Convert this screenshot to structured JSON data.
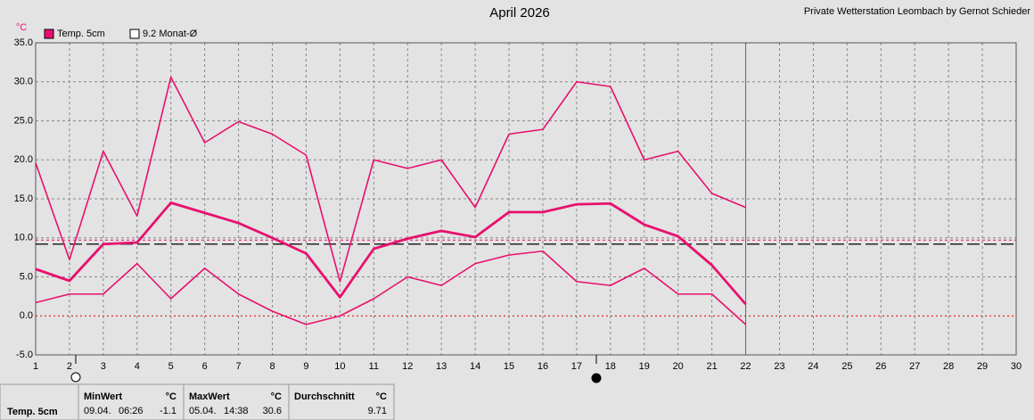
{
  "chart_data": {
    "type": "line",
    "title": "April 2026",
    "subtitle": "Private Wetterstation Leombach by Gernot Schieder",
    "y_unit": "°C",
    "x": [
      1,
      2,
      3,
      4,
      5,
      6,
      7,
      8,
      9,
      10,
      11,
      12,
      13,
      14,
      15,
      16,
      17,
      18,
      19,
      20,
      21,
      22
    ],
    "series": [
      {
        "name": "Temp. 5cm",
        "color": "#e8106e",
        "values": [
          6.0,
          4.5,
          9.2,
          9.4,
          14.5,
          13.2,
          11.9,
          10.0,
          8.0,
          2.4,
          8.6,
          9.9,
          10.9,
          10.1,
          13.3,
          13.3,
          14.3,
          14.4,
          11.7,
          10.2,
          6.5,
          1.5
        ],
        "max": [
          19.6,
          7.2,
          21.1,
          12.8,
          30.6,
          22.2,
          24.9,
          23.3,
          20.6,
          4.4,
          20.0,
          18.9,
          20.0,
          13.9,
          23.3,
          23.9,
          30.0,
          29.4,
          20.0,
          21.1,
          15.7,
          13.9
        ],
        "min": [
          1.7,
          2.8,
          2.8,
          6.7,
          2.2,
          6.1,
          2.8,
          0.6,
          -1.1,
          0.0,
          2.2,
          5.0,
          3.9,
          6.7,
          7.8,
          8.3,
          4.4,
          3.9,
          6.1,
          2.8,
          2.8,
          -1.1
        ]
      }
    ],
    "monthly_average": {
      "value": 9.2,
      "label": "9.2 Monat-Ø",
      "color": "#000000"
    },
    "xlim": [
      1,
      30
    ],
    "xticks": [
      1,
      2,
      3,
      4,
      5,
      6,
      7,
      8,
      9,
      10,
      11,
      12,
      13,
      14,
      15,
      16,
      17,
      18,
      19,
      20,
      21,
      22,
      23,
      24,
      25,
      26,
      27,
      28,
      29,
      30
    ],
    "ylim": [
      -5,
      35
    ],
    "yticks": [
      {
        "value": -5,
        "label": "-5.0"
      },
      {
        "value": 0,
        "label": "0.0"
      },
      {
        "value": 5,
        "label": "5.0"
      },
      {
        "value": 10,
        "label": "10.0"
      },
      {
        "value": 15,
        "label": "15.0"
      },
      {
        "value": 20,
        "label": "20.0"
      },
      {
        "value": 25,
        "label": "25.0"
      },
      {
        "value": 30,
        "label": "30.0"
      },
      {
        "value": 35,
        "label": "35.0"
      }
    ],
    "grid": true
  },
  "stats": {
    "min": {
      "header": "MinWert",
      "unit": "°C",
      "date": "09.04.",
      "time": "06:26",
      "value": -1.1
    },
    "max": {
      "header": "MaxWert",
      "unit": "°C",
      "date": "05.04.",
      "time": "14:38",
      "value": 30.6
    },
    "average": {
      "header": "Durchschnitt",
      "unit": "°C",
      "value": 9.71
    }
  }
}
